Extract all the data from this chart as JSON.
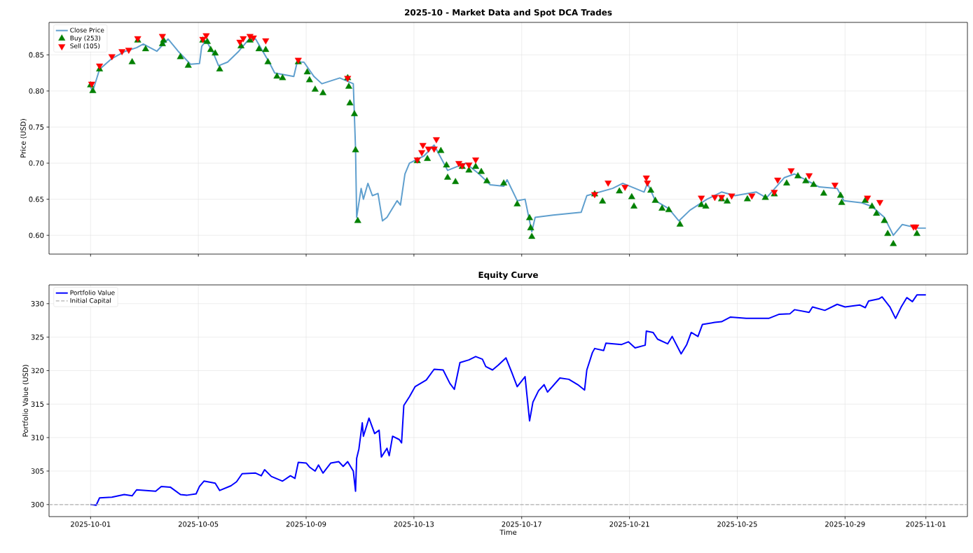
{
  "chart_data": [
    {
      "type": "line",
      "title": "2025-10 - Market Data and Spot DCA Trades",
      "ylabel": "Price (USD)",
      "xlim": [
        "2025-09-29T11:00",
        "2025-11-02T13:00"
      ],
      "ylim": [
        0.574,
        0.895
      ],
      "xticks": [
        "2025-10-01",
        "2025-10-05",
        "2025-10-09",
        "2025-10-13",
        "2025-10-17",
        "2025-10-21",
        "2025-10-25",
        "2025-10-29",
        "2025-11-01"
      ],
      "yticks": [
        {
          "value": 0.6,
          "label": "0.60"
        },
        {
          "value": 0.65,
          "label": "0.65"
        },
        {
          "value": 0.7,
          "label": "0.70"
        },
        {
          "value": 0.75,
          "label": "0.75"
        },
        {
          "value": 0.8,
          "label": "0.80"
        },
        {
          "value": 0.85,
          "label": "0.85"
        }
      ],
      "tick_labels": "y",
      "grid": true,
      "legend": "top left",
      "series": [
        {
          "name": "Close Price",
          "color": "#5f9fce",
          "x": [
            "2025-10-01T00:00",
            "2025-10-01T02:00",
            "2025-10-01T08:00",
            "2025-10-01T19:00",
            "2025-10-02T07:00",
            "2025-10-02T17:00",
            "2025-10-02T23:00",
            "2025-10-03T05:00",
            "2025-10-03T11:00",
            "2025-10-03T21:00",
            "2025-10-04T06:00",
            "2025-10-04T17:00",
            "2025-10-05T01:00",
            "2025-10-05T03:00",
            "2025-10-05T07:00",
            "2025-10-05T14:00",
            "2025-10-05T18:00",
            "2025-10-06T02:00",
            "2025-10-06T12:00",
            "2025-10-06T20:00",
            "2025-10-07T03:00",
            "2025-10-07T15:00",
            "2025-10-07T20:00",
            "2025-10-08T13:00",
            "2025-10-08T16:00",
            "2025-10-08T22:00",
            "2025-10-09T07:00",
            "2025-10-09T14:00",
            "2025-10-10T06:00",
            "2025-10-10T18:00",
            "2025-10-10T20:00",
            "2025-10-10T21:00",
            "2025-10-11T01:00",
            "2025-10-11T03:00",
            "2025-10-11T07:00",
            "2025-10-11T11:00",
            "2025-10-11T16:00",
            "2025-10-11T20:00",
            "2025-10-12T00:00",
            "2025-10-12T09:00",
            "2025-10-12T12:00",
            "2025-10-12T16:00",
            "2025-10-12T20:00",
            "2025-10-13T09:00",
            "2025-10-13T18:00",
            "2025-10-14T06:00",
            "2025-10-14T22:00",
            "2025-10-15T10:00",
            "2025-10-15T20:00",
            "2025-10-16T08:00",
            "2025-10-16T11:00",
            "2025-10-16T20:00",
            "2025-10-17T03:00",
            "2025-10-17T09:00",
            "2025-10-17T12:00",
            "2025-10-18T04:00",
            "2025-10-19T05:00",
            "2025-10-19T10:00",
            "2025-10-20T09:00",
            "2025-10-20T18:00",
            "2025-10-21T13:00",
            "2025-10-21T16:00",
            "2025-10-21T23:00",
            "2025-10-22T11:00",
            "2025-10-22T20:00",
            "2025-10-23T06:00",
            "2025-10-23T21:00",
            "2025-10-24T10:00",
            "2025-10-24T22:00",
            "2025-10-25T17:00",
            "2025-10-26T02:00",
            "2025-10-26T18:00",
            "2025-10-27T03:00",
            "2025-10-28T01:00",
            "2025-10-28T17:00",
            "2025-10-28T23:00",
            "2025-10-29T15:00",
            "2025-10-30T00:00",
            "2025-10-30T11:00",
            "2025-10-30T19:00",
            "2025-10-31T03:00",
            "2025-10-31T17:00",
            "2025-11-01T00:00"
          ],
          "values": [
            0.805,
            0.8,
            0.83,
            0.845,
            0.855,
            0.86,
            0.865,
            0.86,
            0.855,
            0.872,
            0.855,
            0.837,
            0.838,
            0.862,
            0.87,
            0.85,
            0.835,
            0.84,
            0.855,
            0.87,
            0.872,
            0.84,
            0.825,
            0.82,
            0.84,
            0.84,
            0.82,
            0.81,
            0.818,
            0.81,
            0.72,
            0.625,
            0.665,
            0.65,
            0.672,
            0.655,
            0.658,
            0.62,
            0.625,
            0.648,
            0.642,
            0.685,
            0.7,
            0.71,
            0.725,
            0.69,
            0.7,
            0.685,
            0.67,
            0.668,
            0.677,
            0.648,
            0.65,
            0.605,
            0.625,
            0.628,
            0.632,
            0.655,
            0.665,
            0.672,
            0.66,
            0.672,
            0.648,
            0.637,
            0.62,
            0.635,
            0.65,
            0.66,
            0.655,
            0.66,
            0.652,
            0.68,
            0.685,
            0.667,
            0.665,
            0.648,
            0.645,
            0.64,
            0.625,
            0.6,
            0.615,
            0.61,
            0.61
          ]
        },
        {
          "name": "Buy (253)",
          "type": "scatter",
          "color": "#008000",
          "marker": "triangle",
          "x": [
            "2025-10-01T00:00",
            "2025-10-01T02:00",
            "2025-10-01T08:00",
            "2025-10-02T13:00",
            "2025-10-02T18:00",
            "2025-10-03T01:00",
            "2025-10-03T16:00",
            "2025-10-03T17:00",
            "2025-10-04T08:00",
            "2025-10-04T15:00",
            "2025-10-05T04:00",
            "2025-10-05T08:00",
            "2025-10-05T11:00",
            "2025-10-05T15:00",
            "2025-10-05T19:00",
            "2025-10-06T14:00",
            "2025-10-06T22:00",
            "2025-10-07T06:00",
            "2025-10-07T12:00",
            "2025-10-07T14:00",
            "2025-10-07T22:00",
            "2025-10-08T03:00",
            "2025-10-08T17:00",
            "2025-10-09T01:00",
            "2025-10-09T03:00",
            "2025-10-09T08:00",
            "2025-10-09T15:00",
            "2025-10-10T13:00",
            "2025-10-10T14:00",
            "2025-10-10T15:00",
            "2025-10-10T19:00",
            "2025-10-10T20:00",
            "2025-10-10T22:00",
            "2025-10-13T03:00",
            "2025-10-13T12:00",
            "2025-10-14T00:00",
            "2025-10-14T05:00",
            "2025-10-14T06:00",
            "2025-10-14T13:00",
            "2025-10-14T19:00",
            "2025-10-15T01:00",
            "2025-10-15T07:00",
            "2025-10-15T12:00",
            "2025-10-15T17:00",
            "2025-10-16T08:00",
            "2025-10-16T20:00",
            "2025-10-17T07:00",
            "2025-10-17T08:00",
            "2025-10-17T09:00",
            "2025-10-19T17:00",
            "2025-10-20T00:00",
            "2025-10-20T15:00",
            "2025-10-21T02:00",
            "2025-10-21T04:00",
            "2025-10-21T19:00",
            "2025-10-21T23:00",
            "2025-10-22T05:00",
            "2025-10-22T11:00",
            "2025-10-22T21:00",
            "2025-10-23T16:00",
            "2025-10-23T20:00",
            "2025-10-24T10:00",
            "2025-10-24T15:00",
            "2025-10-25T09:00",
            "2025-10-26T01:00",
            "2025-10-26T09:00",
            "2025-10-26T20:00",
            "2025-10-27T06:00",
            "2025-10-27T13:00",
            "2025-10-27T20:00",
            "2025-10-28T05:00",
            "2025-10-28T20:00",
            "2025-10-28T21:00",
            "2025-10-29T18:00",
            "2025-10-30T00:00",
            "2025-10-30T04:00",
            "2025-10-30T11:00",
            "2025-10-30T14:00",
            "2025-10-30T19:00",
            "2025-10-31T16:00"
          ],
          "values": [
            0.808,
            0.8,
            0.83,
            0.84,
            0.87,
            0.858,
            0.865,
            0.87,
            0.847,
            0.835,
            0.87,
            0.868,
            0.857,
            0.852,
            0.83,
            0.862,
            0.87,
            0.858,
            0.857,
            0.84,
            0.82,
            0.818,
            0.84,
            0.826,
            0.815,
            0.802,
            0.797,
            0.818,
            0.806,
            0.783,
            0.768,
            0.718,
            0.62,
            0.703,
            0.706,
            0.717,
            0.697,
            0.68,
            0.674,
            0.695,
            0.69,
            0.695,
            0.688,
            0.675,
            0.672,
            0.643,
            0.624,
            0.61,
            0.598,
            0.657,
            0.647,
            0.661,
            0.653,
            0.64,
            0.662,
            0.648,
            0.637,
            0.635,
            0.615,
            0.642,
            0.64,
            0.65,
            0.647,
            0.65,
            0.652,
            0.657,
            0.672,
            0.682,
            0.675,
            0.67,
            0.658,
            0.655,
            0.645,
            0.648,
            0.64,
            0.63,
            0.62,
            0.602,
            0.588,
            0.602
          ]
        },
        {
          "name": "Sell (105)",
          "type": "scatter",
          "color": "#ff0000",
          "marker": "triangle_down",
          "x": [
            "2025-10-01T01:00",
            "2025-10-01T08:00",
            "2025-10-01T19:00",
            "2025-10-02T04:00",
            "2025-10-02T10:00",
            "2025-10-02T18:00",
            "2025-10-03T16:00",
            "2025-10-05T04:00",
            "2025-10-05T07:00",
            "2025-10-06T13:00",
            "2025-10-06T16:00",
            "2025-10-06T22:00",
            "2025-10-07T01:00",
            "2025-10-07T12:00",
            "2025-10-08T17:00",
            "2025-10-10T13:00",
            "2025-10-13T03:00",
            "2025-10-13T07:00",
            "2025-10-13T08:00",
            "2025-10-13T13:00",
            "2025-10-13T18:00",
            "2025-10-13T20:00",
            "2025-10-14T16:00",
            "2025-10-14T19:00",
            "2025-10-15T01:00",
            "2025-10-15T07:00",
            "2025-10-19T17:00",
            "2025-10-20T05:00",
            "2025-10-20T20:00",
            "2025-10-21T15:00",
            "2025-10-21T16:00",
            "2025-10-23T16:00",
            "2025-10-24T04:00",
            "2025-10-24T10:00",
            "2025-10-24T19:00",
            "2025-10-25T13:00",
            "2025-10-26T09:00",
            "2025-10-26T12:00",
            "2025-10-27T00:00",
            "2025-10-27T16:00",
            "2025-10-28T15:00",
            "2025-10-29T20:00",
            "2025-10-30T07:00",
            "2025-10-31T13:00",
            "2025-10-31T15:00"
          ],
          "values": [
            0.81,
            0.835,
            0.848,
            0.855,
            0.857,
            0.873,
            0.876,
            0.872,
            0.877,
            0.868,
            0.873,
            0.876,
            0.874,
            0.87,
            0.843,
            0.818,
            0.705,
            0.715,
            0.725,
            0.72,
            0.72,
            0.733,
            0.7,
            0.697,
            0.698,
            0.705,
            0.657,
            0.673,
            0.667,
            0.68,
            0.673,
            0.652,
            0.653,
            0.653,
            0.655,
            0.655,
            0.66,
            0.677,
            0.69,
            0.683,
            0.67,
            0.652,
            0.646,
            0.612,
            0.612
          ]
        }
      ]
    },
    {
      "type": "line",
      "title": "Equity Curve",
      "xlabel": "Time",
      "ylabel": "Portfolio Value (USD)",
      "xlim": [
        "2025-09-29T11:00",
        "2025-11-02T13:00"
      ],
      "ylim": [
        298.2,
        332.8
      ],
      "xticks": [
        "2025-10-01",
        "2025-10-05",
        "2025-10-09",
        "2025-10-13",
        "2025-10-17",
        "2025-10-21",
        "2025-10-25",
        "2025-10-29",
        "2025-11-01"
      ],
      "yticks": [
        300,
        305,
        310,
        315,
        320,
        325,
        330
      ],
      "grid": true,
      "legend": "top left",
      "ref_lines": [
        {
          "axis": "y",
          "value": 300,
          "label": "Initial Capital",
          "color": "#b0b0b0",
          "line_style": "dashed"
        }
      ],
      "series": [
        {
          "name": "Portfolio Value",
          "color": "#0000ff",
          "x": [
            "2025-10-01T00:00",
            "2025-10-01T05:00",
            "2025-10-01T08:00",
            "2025-10-01T19:00",
            "2025-10-02T06:00",
            "2025-10-02T13:00",
            "2025-10-02T17:00",
            "2025-10-03T10:00",
            "2025-10-03T15:00",
            "2025-10-03T23:00",
            "2025-10-04T08:00",
            "2025-10-04T14:00",
            "2025-10-04T22:00",
            "2025-10-05T01:00",
            "2025-10-05T05:00",
            "2025-10-05T15:00",
            "2025-10-05T19:00",
            "2025-10-06T05:00",
            "2025-10-06T10:00",
            "2025-10-06T15:00",
            "2025-10-07T03:00",
            "2025-10-07T08:00",
            "2025-10-07T11:00",
            "2025-10-07T17:00",
            "2025-10-08T03:00",
            "2025-10-08T10:00",
            "2025-10-08T14:00",
            "2025-10-08T17:00",
            "2025-10-09T00:00",
            "2025-10-09T03:00",
            "2025-10-09T08:00",
            "2025-10-09T11:00",
            "2025-10-09T15:00",
            "2025-10-09T22:00",
            "2025-10-10T05:00",
            "2025-10-10T09:00",
            "2025-10-10T13:00",
            "2025-10-10T18:00",
            "2025-10-10T20:00",
            "2025-10-10T21:00",
            "2025-10-10T23:00",
            "2025-10-11T02:00",
            "2025-10-11T03:00",
            "2025-10-11T08:00",
            "2025-10-11T13:00",
            "2025-10-11T17:00",
            "2025-10-11T19:00",
            "2025-10-12T00:00",
            "2025-10-12T02:00",
            "2025-10-12T05:00",
            "2025-10-12T11:00",
            "2025-10-12T13:00",
            "2025-10-12T15:00",
            "2025-10-12T20:00",
            "2025-10-13T01:00",
            "2025-10-13T11:00",
            "2025-10-13T18:00",
            "2025-10-14T02:00",
            "2025-10-14T08:00",
            "2025-10-14T12:00",
            "2025-10-14T17:00",
            "2025-10-15T01:00",
            "2025-10-15T07:00",
            "2025-10-15T13:00",
            "2025-10-15T16:00",
            "2025-10-15T22:00",
            "2025-10-16T03:00",
            "2025-10-16T10:00",
            "2025-10-16T15:00",
            "2025-10-16T20:00",
            "2025-10-17T03:00",
            "2025-10-17T07:00",
            "2025-10-17T10:00",
            "2025-10-17T15:00",
            "2025-10-17T20:00",
            "2025-10-17T23:00",
            "2025-10-18T10:00",
            "2025-10-18T18:00",
            "2025-10-19T02:00",
            "2025-10-19T08:00",
            "2025-10-19T10:00",
            "2025-10-19T15:00",
            "2025-10-19T17:00",
            "2025-10-20T01:00",
            "2025-10-20T03:00",
            "2025-10-20T17:00",
            "2025-10-20T23:00",
            "2025-10-21T05:00",
            "2025-10-21T14:00",
            "2025-10-21T15:00",
            "2025-10-21T21:00",
            "2025-10-22T01:00",
            "2025-10-22T10:00",
            "2025-10-22T14:00",
            "2025-10-22T22:00",
            "2025-10-23T03:00",
            "2025-10-23T07:00",
            "2025-10-23T13:00",
            "2025-10-23T17:00",
            "2025-10-24T04:00",
            "2025-10-24T10:00",
            "2025-10-24T18:00",
            "2025-10-25T08:00",
            "2025-10-26T04:00",
            "2025-10-26T13:00",
            "2025-10-26T23:00",
            "2025-10-27T03:00",
            "2025-10-27T16:00",
            "2025-10-27T19:00",
            "2025-10-28T06:00",
            "2025-10-28T17:00",
            "2025-10-29T00:00",
            "2025-10-29T13:00",
            "2025-10-29T18:00",
            "2025-10-29T21:00",
            "2025-10-30T06:00",
            "2025-10-30T09:00",
            "2025-10-30T16:00",
            "2025-10-30T21:00",
            "2025-10-31T02:00",
            "2025-10-31T07:00",
            "2025-10-31T12:00",
            "2025-10-31T16:00",
            "2025-11-01T00:00"
          ],
          "values": [
            300.0,
            299.9,
            301.0,
            301.1,
            301.5,
            301.3,
            302.2,
            302.0,
            302.7,
            302.6,
            301.5,
            301.4,
            301.6,
            302.7,
            303.5,
            303.2,
            302.1,
            302.8,
            303.4,
            304.6,
            304.7,
            304.3,
            305.2,
            304.2,
            303.5,
            304.3,
            303.9,
            306.3,
            306.2,
            305.6,
            305.0,
            305.9,
            304.7,
            306.2,
            306.4,
            305.7,
            306.4,
            305.0,
            302.0,
            306.9,
            308.3,
            312.2,
            310.2,
            312.9,
            310.6,
            311.1,
            307.1,
            308.4,
            307.3,
            310.2,
            309.7,
            309.2,
            314.8,
            316.1,
            317.6,
            318.6,
            320.2,
            320.1,
            318.1,
            317.2,
            321.2,
            321.6,
            322.1,
            321.7,
            320.6,
            320.1,
            320.8,
            321.9,
            319.8,
            317.6,
            319.1,
            312.5,
            315.3,
            317.0,
            317.9,
            316.8,
            318.9,
            318.7,
            317.9,
            317.1,
            320.1,
            322.7,
            323.3,
            323.0,
            324.1,
            323.9,
            324.3,
            323.4,
            323.8,
            325.9,
            325.7,
            324.7,
            324.0,
            325.1,
            322.5,
            323.9,
            325.7,
            325.1,
            326.9,
            327.2,
            327.3,
            328.0,
            327.8,
            327.8,
            328.4,
            328.5,
            329.1,
            328.7,
            329.5,
            329.0,
            329.9,
            329.5,
            329.8,
            329.4,
            330.4,
            330.7,
            331.0,
            329.5,
            327.8,
            329.5,
            330.9,
            330.3,
            331.3,
            331.3
          ]
        }
      ]
    }
  ]
}
